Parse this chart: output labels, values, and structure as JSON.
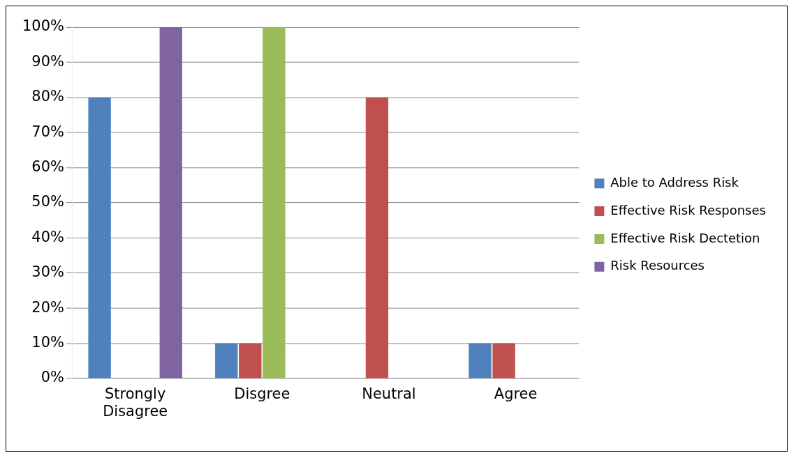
{
  "chart_data": {
    "type": "bar",
    "categories": [
      "Strongly Disagree",
      "Disgree",
      "Neutral",
      "Agree"
    ],
    "series": [
      {
        "name": "Able to Address Risk",
        "color": "#4f81bd",
        "values": [
          80,
          10,
          0,
          10
        ]
      },
      {
        "name": "Effective Risk Responses",
        "color": "#c0504d",
        "values": [
          0,
          10,
          80,
          10
        ]
      },
      {
        "name": "Effective Risk Dectetion",
        "color": "#9bbb59",
        "values": [
          0,
          100,
          0,
          0
        ]
      },
      {
        "name": "Risk Resources",
        "color": "#8064a2",
        "values": [
          100,
          0,
          0,
          0
        ]
      }
    ],
    "ylim": [
      0,
      100
    ],
    "yticks": [
      {
        "value": 0,
        "label": "0%"
      },
      {
        "value": 10,
        "label": "10%"
      },
      {
        "value": 20,
        "label": "20%"
      },
      {
        "value": 30,
        "label": "30%"
      },
      {
        "value": 40,
        "label": "40%"
      },
      {
        "value": 50,
        "label": "50%"
      },
      {
        "value": 60,
        "label": "60%"
      },
      {
        "value": 70,
        "label": "70%"
      },
      {
        "value": 80,
        "label": "80%"
      },
      {
        "value": 90,
        "label": "90%"
      },
      {
        "value": 100,
        "label": "100%"
      }
    ],
    "grid": "y",
    "legend": "right"
  }
}
